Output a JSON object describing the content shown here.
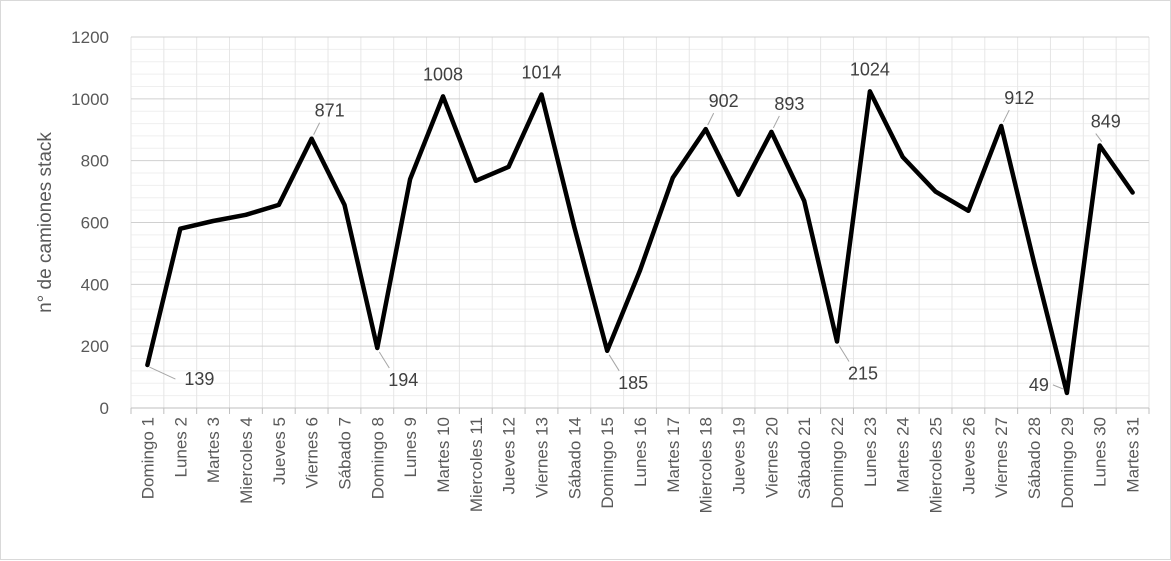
{
  "chart_data": {
    "type": "line",
    "title": "",
    "xlabel": "",
    "ylabel": "n° de camiones stack",
    "ylim": [
      0,
      1200
    ],
    "yticks": [
      "0",
      "200",
      "400",
      "600",
      "800",
      "1000",
      "1200"
    ],
    "grid": {
      "major": true,
      "minor": true
    },
    "legend": "none",
    "line_color": "#000000",
    "categories": [
      "Domingo 1",
      "Lunes 2",
      "Martes 3",
      "Miercoles 4",
      "Jueves 5",
      "Viernes 6",
      "Sábado 7",
      "Domingo 8",
      "Lunes 9",
      "Martes 10",
      "Miercoles 11",
      "Jueves 12",
      "Viernes 13",
      "Sábado 14",
      "Domingo 15",
      "Lunes 16",
      "Martes 17",
      "Miercoles 18",
      "Jueves 19",
      "Viernes 20",
      "Sábado 21",
      "Domingo 22",
      "Lunes 23",
      "Martes 24",
      "Miercoles 25",
      "Jueves 26",
      "Viernes 27",
      "Sábado 28",
      "Domingo 29",
      "Lunes 30",
      "Martes 31"
    ],
    "series": [
      {
        "values": [
          139,
          580,
          605,
          625,
          657,
          871,
          657,
          194,
          740,
          1008,
          735,
          780,
          1014,
          585,
          185,
          445,
          745,
          902,
          690,
          893,
          670,
          215,
          1024,
          812,
          700,
          638,
          912,
          470,
          49,
          849,
          697
        ]
      }
    ],
    "data_labels": [
      {
        "index": 0,
        "text": "139"
      },
      {
        "index": 5,
        "text": "871"
      },
      {
        "index": 7,
        "text": "194"
      },
      {
        "index": 9,
        "text": "1008"
      },
      {
        "index": 12,
        "text": "1014"
      },
      {
        "index": 14,
        "text": "185"
      },
      {
        "index": 17,
        "text": "902"
      },
      {
        "index": 19,
        "text": "893"
      },
      {
        "index": 21,
        "text": "215"
      },
      {
        "index": 22,
        "text": "1024"
      },
      {
        "index": 26,
        "text": "912"
      },
      {
        "index": 28,
        "text": "49"
      },
      {
        "index": 29,
        "text": "849"
      }
    ]
  }
}
